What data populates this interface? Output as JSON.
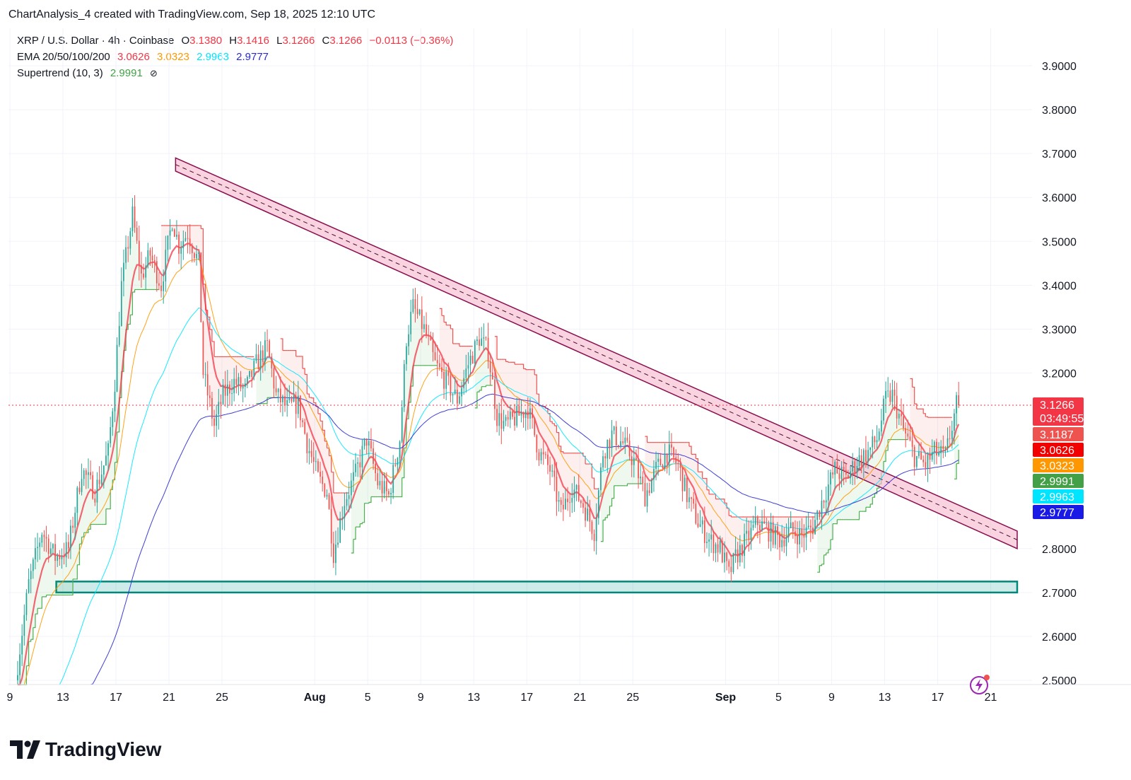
{
  "header": {
    "author_line": "ChartAnalysis_4 created with TradingView.com, Sep 18, 2025 12:10 UTC"
  },
  "legend": {
    "symbol": "XRP / U.S. Dollar · 4h · Coinbase",
    "open_label": "O",
    "open": "3.1380",
    "high_label": "H",
    "high": "3.1416",
    "low_label": "L",
    "low": "3.1266",
    "close_label": "C",
    "close": "3.1266",
    "change": "−0.0113 (−0.36%)",
    "ema_label": "EMA 20/50/100/200",
    "ema20": "3.0626",
    "ema50": "3.0323",
    "ema100": "2.9963",
    "ema200": "2.9777",
    "supertrend_label": "Supertrend (10, 3)",
    "supertrend": "2.9991"
  },
  "brand": {
    "name": "TradingView"
  },
  "colors": {
    "up": "#26a69a",
    "down": "#ef5350",
    "ema20": "#f23645",
    "ema50": "#ff9800",
    "ema100": "#00e5ff",
    "ema200": "#2a2ad0",
    "supertrend_up": "#4caf50",
    "supertrend_down": "#ef5350",
    "trendline": "#880e4f",
    "support": "#26a69a"
  },
  "chart_data": {
    "type": "candlestick",
    "yaxis": {
      "min": 2.5,
      "max": 3.9,
      "ticks": [
        "3.9000",
        "3.8000",
        "3.7000",
        "3.6000",
        "3.5000",
        "3.4000",
        "3.3000",
        "3.2000",
        "2.8000",
        "2.7000",
        "2.6000",
        "2.5000"
      ]
    },
    "xaxis": {
      "start_date": "2025-07-09",
      "ticks": [
        {
          "label": "9",
          "date": "2025-07-09"
        },
        {
          "label": "13",
          "date": "2025-07-13"
        },
        {
          "label": "17",
          "date": "2025-07-17"
        },
        {
          "label": "21",
          "date": "2025-07-21"
        },
        {
          "label": "25",
          "date": "2025-07-25"
        },
        {
          "label": "Aug",
          "date": "2025-08-01",
          "bold": true
        },
        {
          "label": "5",
          "date": "2025-08-05"
        },
        {
          "label": "9",
          "date": "2025-08-09"
        },
        {
          "label": "13",
          "date": "2025-08-13"
        },
        {
          "label": "17",
          "date": "2025-08-17"
        },
        {
          "label": "21",
          "date": "2025-08-21"
        },
        {
          "label": "25",
          "date": "2025-08-25"
        },
        {
          "label": "Sep",
          "date": "2025-09-01",
          "bold": true
        },
        {
          "label": "5",
          "date": "2025-09-05"
        },
        {
          "label": "9",
          "date": "2025-09-09"
        },
        {
          "label": "13",
          "date": "2025-09-13"
        },
        {
          "label": "17",
          "date": "2025-09-17"
        },
        {
          "label": "21",
          "date": "2025-09-21"
        }
      ]
    },
    "price_path": [
      [
        "2025-07-09 12:00",
        2.5
      ],
      [
        "2025-07-10 12:00",
        2.72
      ],
      [
        "2025-07-11 12:00",
        2.84
      ],
      [
        "2025-07-12 12:00",
        2.78
      ],
      [
        "2025-07-13 12:00",
        2.8
      ],
      [
        "2025-07-14 12:00",
        2.98
      ],
      [
        "2025-07-15 12:00",
        2.93
      ],
      [
        "2025-07-16 12:00",
        3.02
      ],
      [
        "2025-07-17 00:00",
        3.18
      ],
      [
        "2025-07-17 12:00",
        3.4
      ],
      [
        "2025-07-18 08:00",
        3.56
      ],
      [
        "2025-07-19 00:00",
        3.42
      ],
      [
        "2025-07-19 16:00",
        3.47
      ],
      [
        "2025-07-20 12:00",
        3.4
      ],
      [
        "2025-07-21 08:00",
        3.55
      ],
      [
        "2025-07-21 20:00",
        3.49
      ],
      [
        "2025-07-22 12:00",
        3.52
      ],
      [
        "2025-07-23 08:00",
        3.45
      ],
      [
        "2025-07-23 16:00",
        3.2
      ],
      [
        "2025-07-24 12:00",
        3.08
      ],
      [
        "2025-07-25 04:00",
        3.15
      ],
      [
        "2025-07-26 00:00",
        3.18
      ],
      [
        "2025-07-26 20:00",
        3.16
      ],
      [
        "2025-07-27 16:00",
        3.22
      ],
      [
        "2025-07-28 12:00",
        3.26
      ],
      [
        "2025-07-29 04:00",
        3.15
      ],
      [
        "2025-07-30 00:00",
        3.12
      ],
      [
        "2025-07-30 20:00",
        3.13
      ],
      [
        "2025-07-31 12:00",
        3.04
      ],
      [
        "2025-08-01 08:00",
        2.96
      ],
      [
        "2025-08-02 00:00",
        2.93
      ],
      [
        "2025-08-02 12:00",
        2.79
      ],
      [
        "2025-08-03 08:00",
        2.91
      ],
      [
        "2025-08-04 04:00",
        2.97
      ],
      [
        "2025-08-05 00:00",
        3.05
      ],
      [
        "2025-08-05 20:00",
        2.95
      ],
      [
        "2025-08-06 16:00",
        2.92
      ],
      [
        "2025-08-07 12:00",
        3.05
      ],
      [
        "2025-08-08 00:00",
        3.28
      ],
      [
        "2025-08-08 12:00",
        3.35
      ],
      [
        "2025-08-09 08:00",
        3.3
      ],
      [
        "2025-08-10 04:00",
        3.22
      ],
      [
        "2025-08-11 00:00",
        3.18
      ],
      [
        "2025-08-11 20:00",
        3.14
      ],
      [
        "2025-08-12 16:00",
        3.22
      ],
      [
        "2025-08-13 12:00",
        3.28
      ],
      [
        "2025-08-14 04:00",
        3.25
      ],
      [
        "2025-08-14 20:00",
        3.1
      ],
      [
        "2025-08-15 12:00",
        3.08
      ],
      [
        "2025-08-16 08:00",
        3.1
      ],
      [
        "2025-08-17 04:00",
        3.12
      ],
      [
        "2025-08-18 00:00",
        3.02
      ],
      [
        "2025-08-18 20:00",
        2.98
      ],
      [
        "2025-08-19 16:00",
        2.88
      ],
      [
        "2025-08-20 12:00",
        2.94
      ],
      [
        "2025-08-21 08:00",
        2.9
      ],
      [
        "2025-08-22 04:00",
        2.84
      ],
      [
        "2025-08-22 20:00",
        3.02
      ],
      [
        "2025-08-23 12:00",
        3.06
      ],
      [
        "2025-08-24 08:00",
        3.04
      ],
      [
        "2025-08-25 04:00",
        3.0
      ],
      [
        "2025-08-26 00:00",
        2.92
      ],
      [
        "2025-08-26 20:00",
        2.98
      ],
      [
        "2025-08-27 16:00",
        3.02
      ],
      [
        "2025-08-28 12:00",
        2.99
      ],
      [
        "2025-08-29 04:00",
        2.92
      ],
      [
        "2025-08-30 00:00",
        2.86
      ],
      [
        "2025-08-30 20:00",
        2.82
      ],
      [
        "2025-08-31 16:00",
        2.8
      ],
      [
        "2025-09-01 08:00",
        2.74
      ],
      [
        "2025-09-01 20:00",
        2.78
      ],
      [
        "2025-09-02 16:00",
        2.82
      ],
      [
        "2025-09-03 12:00",
        2.86
      ],
      [
        "2025-09-04 08:00",
        2.84
      ],
      [
        "2025-09-05 04:00",
        2.82
      ],
      [
        "2025-09-06 00:00",
        2.84
      ],
      [
        "2025-09-06 20:00",
        2.83
      ],
      [
        "2025-09-07 16:00",
        2.85
      ],
      [
        "2025-09-08 12:00",
        2.92
      ],
      [
        "2025-09-09 08:00",
        2.98
      ],
      [
        "2025-09-10 04:00",
        2.96
      ],
      [
        "2025-09-11 00:00",
        3.0
      ],
      [
        "2025-09-11 20:00",
        3.02
      ],
      [
        "2025-09-12 12:00",
        3.05
      ],
      [
        "2025-09-13 04:00",
        3.14
      ],
      [
        "2025-09-13 16:00",
        3.15
      ],
      [
        "2025-09-14 12:00",
        3.07
      ],
      [
        "2025-09-15 08:00",
        3.01
      ],
      [
        "2025-09-16 04:00",
        2.99
      ],
      [
        "2025-09-16 20:00",
        3.02
      ],
      [
        "2025-09-17 16:00",
        3.01
      ],
      [
        "2025-09-18 04:00",
        3.08
      ],
      [
        "2025-09-18 12:00",
        3.1266
      ]
    ],
    "ema_last": {
      "ema20": 3.0626,
      "ema50": 3.0323,
      "ema100": 2.9963,
      "ema200": 2.9777
    },
    "descending_trendline": {
      "start": {
        "date": "2025-07-21 12:00",
        "value_top": 3.69,
        "value_bottom": 3.66
      },
      "end": {
        "date": "2025-09-23 00:00",
        "value_top": 2.84,
        "value_bottom": 2.8
      }
    },
    "support_zone": {
      "from": "2025-07-12 12:00",
      "to": "2025-09-23 00:00",
      "low": 2.7,
      "high": 2.725
    },
    "current_price_line": 3.1266,
    "price_labels": [
      {
        "text": "3.1266",
        "sub": "03:49:55",
        "value": 3.1266,
        "color": "#f23645"
      },
      {
        "text": "3.1187",
        "value": 3.1187,
        "color": "#ef5350"
      },
      {
        "text": "3.0626",
        "value": 3.0626,
        "color": "#f20000"
      },
      {
        "text": "3.0323",
        "value": 3.0323,
        "color": "#ff9800"
      },
      {
        "text": "2.9991",
        "value": 2.9991,
        "color": "#43a047"
      },
      {
        "text": "2.9963",
        "value": 2.9963,
        "color": "#00e5ff"
      },
      {
        "text": "2.9777",
        "value": 2.9777,
        "color": "#1a1ae6"
      }
    ]
  }
}
